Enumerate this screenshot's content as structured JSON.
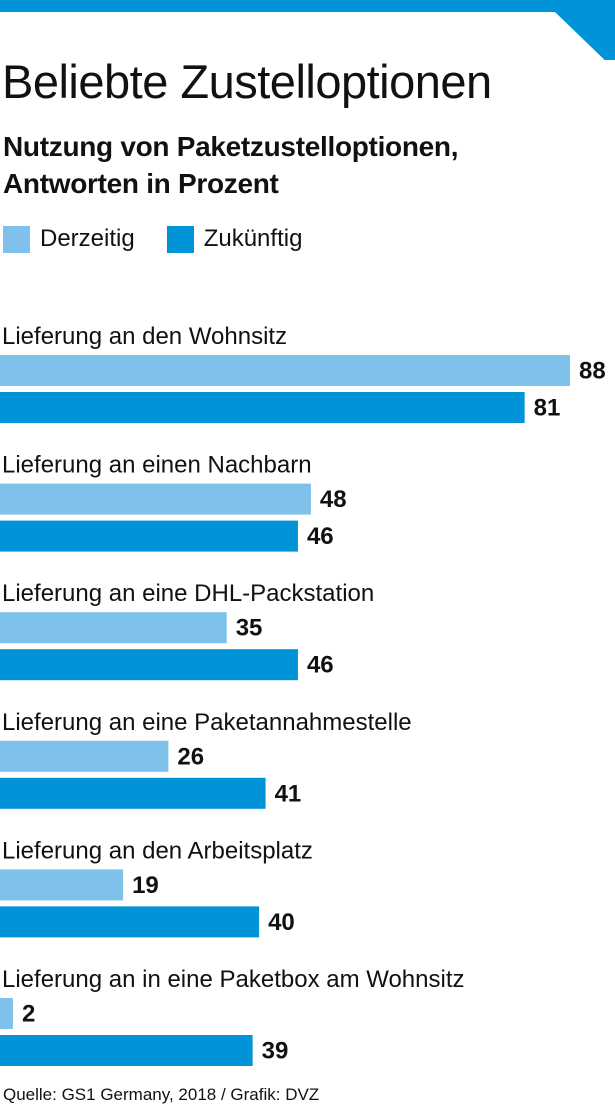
{
  "header": {
    "title": "Beliebte Zustelloptionen",
    "subtitle_line1": "Nutzung von Paketzustelloptionen,",
    "subtitle_line2": "Antworten in Prozent"
  },
  "legend": {
    "current_label": "Derzeitig",
    "future_label": "Zukünftig"
  },
  "footer": {
    "source": "Quelle: GS1 Germany, 2018 / Grafik: DVZ"
  },
  "colors": {
    "accent": "#0093d8",
    "current": "#7ec1ea",
    "future": "#0093d8",
    "text": "#111111"
  },
  "chart_data": {
    "type": "bar",
    "orientation": "horizontal",
    "title": "Beliebte Zustelloptionen",
    "subtitle": "Nutzung von Paketzustelloptionen, Antworten in Prozent",
    "categories": [
      "Lieferung an den Wohnsitz",
      "Lieferung an einen Nachbarn",
      "Lieferung an eine DHL-Packstation",
      "Lieferung an eine Paketannahmestelle",
      "Lieferung an den Arbeitsplatz",
      "Lieferung an in eine Paketbox am Wohnsitz"
    ],
    "series": [
      {
        "name": "Derzeitig",
        "values": [
          88,
          48,
          35,
          26,
          19,
          2
        ]
      },
      {
        "name": "Zukünftig",
        "values": [
          81,
          46,
          46,
          41,
          40,
          39
        ]
      }
    ],
    "xlim": [
      0,
      100
    ],
    "grid": false,
    "legend_position": "top-left",
    "data_labels": true,
    "source": "Quelle: GS1 Germany, 2018 / Grafik: DVZ"
  }
}
